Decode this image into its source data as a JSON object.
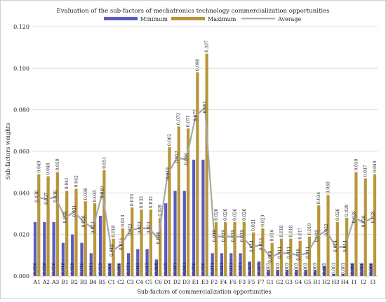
{
  "chart_data": {
    "type": "bar",
    "title": "Evaluation of the sub-factors of mechatronics technology commercialization opportunities",
    "xlabel": "Sub-factors of commercialization opportunities",
    "ylabel": "Sub-factors weights",
    "ylim": [
      0,
      0.12
    ],
    "yticks": [
      "0.000",
      "0.020",
      "0.040",
      "0.060",
      "0.080",
      "0.100",
      "0.120"
    ],
    "legend_position": "top",
    "grid": true,
    "categories": [
      "A1",
      "A2",
      "A3",
      "B1",
      "B2",
      "B3",
      "B4",
      "B5",
      "C1",
      "C2",
      "C3",
      "C4",
      "C5",
      "C6",
      "D1",
      "D2",
      "D3",
      "E1",
      "E3",
      "F2",
      "F4",
      "F6",
      "F3",
      "F5",
      "F7",
      "G1",
      "G2",
      "G3",
      "G4",
      "G5",
      "H1",
      "H2",
      "H3",
      "H4",
      "I1",
      "I2",
      "I3"
    ],
    "series": [
      {
        "name": "Minimum",
        "color": "#5b5bbf",
        "type": "bar",
        "values": [
          0.026,
          0.026,
          0.026,
          0.016,
          0.02,
          0.016,
          0.011,
          0.029,
          0.006,
          0.006,
          0.011,
          0.013,
          0.013,
          0.008,
          0.035,
          0.041,
          0.041,
          0.056,
          0.056,
          0.011,
          0.011,
          0.011,
          0.011,
          0.007,
          0.007,
          0.003,
          0.003,
          0.003,
          0.003,
          0.003,
          0.003,
          0.005,
          0.001,
          0.001,
          0.006,
          0.006,
          0.006
        ],
        "labels": [
          "0.026",
          "0.026",
          "0.026",
          "0.016",
          "0.020",
          "0.016",
          "0.011",
          "0.029",
          "0.006",
          "0.006",
          "0.011",
          "0.013",
          "0.013",
          "0.008",
          "0.035",
          "0.041",
          "0.041",
          "0.056",
          "0.056",
          "0.011",
          "0.011",
          "0.011",
          "0.011",
          "0.007",
          "0.007",
          "0.003",
          "0.003",
          "0.003",
          "0.003",
          "0.003",
          "0.003",
          "0.005",
          "0.001",
          "0.001",
          "0.006",
          "0.006",
          "0.006"
        ]
      },
      {
        "name": "Maximum",
        "color": "#b8963a",
        "type": "bar",
        "values": [
          0.049,
          0.048,
          0.05,
          0.041,
          0.042,
          0.036,
          0.035,
          0.051,
          0.018,
          0.023,
          0.033,
          0.032,
          0.032,
          0.028,
          0.062,
          0.072,
          0.071,
          0.098,
          0.107,
          0.026,
          0.026,
          0.026,
          0.026,
          0.021,
          0.023,
          0.016,
          0.018,
          0.018,
          0.017,
          0.019,
          0.034,
          0.039,
          0.026,
          0.028,
          0.05,
          0.047,
          0.049
        ],
        "labels": [
          "0.049",
          "0.048",
          "0.050",
          "0.041",
          "0.042",
          "0.036",
          "0.035",
          "0.051",
          "0.018",
          "0.023",
          "0.033",
          "0.032",
          "0.032",
          "0.028",
          "0.062",
          "0.072",
          "0.071",
          "0.098",
          "0.107",
          "0.026",
          "0.026",
          "0.026",
          "0.026",
          "0.021",
          "0.023",
          "0.016",
          "0.018",
          "0.018",
          "0.017",
          "0.019",
          "0.034",
          "0.039",
          "0.026",
          "0.028",
          "0.050",
          "0.047",
          "0.049"
        ]
      },
      {
        "name": "Average",
        "color": "#a8a8a8",
        "type": "line",
        "values": [
          0.038,
          0.037,
          0.038,
          0.028,
          0.031,
          0.026,
          0.023,
          0.04,
          0.012,
          0.015,
          0.022,
          0.023,
          0.023,
          0.018,
          0.049,
          0.057,
          0.056,
          0.077,
          0.081,
          0.019,
          0.019,
          0.019,
          0.019,
          0.014,
          0.015,
          0.009,
          0.011,
          0.011,
          0.01,
          0.011,
          0.019,
          0.022,
          0.014,
          0.014,
          0.028,
          0.026,
          0.028
        ],
        "labels": [
          "0.038",
          "0.037",
          "0.038",
          "0.028",
          "0.031",
          "0.026",
          "0.023",
          "0.040",
          "0.012",
          "0.015",
          "0.022",
          "0.023",
          "0.023",
          "0.018",
          "0.049",
          "0.057",
          "0.056",
          "0.077",
          "0.081",
          "0.019",
          "0.019",
          "0.019",
          "0.019",
          "0.014",
          "0.015",
          "0.009",
          "0.011",
          "0.011",
          "0.010",
          "0.011",
          "0.019",
          "0.022",
          "0.014",
          "0.014",
          "0.028",
          "0.026",
          "0.028"
        ]
      }
    ]
  }
}
